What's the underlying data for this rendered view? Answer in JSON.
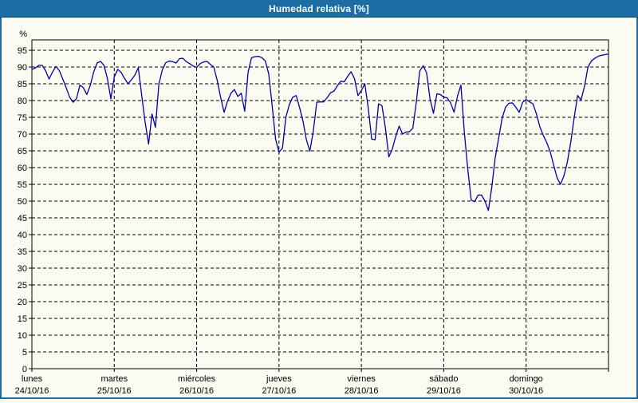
{
  "window": {
    "title": "Humedad relativa [%]"
  },
  "colors": {
    "titlebar_bg": "#1B6DA3",
    "titlebar_border": "#0F4C78",
    "titlebar_text": "#FFFFFF",
    "window_border": "#1B6DA3",
    "page_bg": "#FBFBF1",
    "plot_bg": "#FBFBF1",
    "axis": "#000000",
    "grid": "#000000",
    "line": "#0000AA",
    "label_text": "#000000"
  },
  "chart_data": {
    "type": "line",
    "title": "Humedad relativa [%]",
    "xlabel": "",
    "ylabel": "%",
    "ylim": [
      0,
      98
    ],
    "yticks": [
      0,
      5,
      10,
      15,
      20,
      25,
      30,
      35,
      40,
      45,
      50,
      55,
      60,
      65,
      70,
      75,
      80,
      85,
      90,
      95
    ],
    "grid": "dashed",
    "legend": "none",
    "x_axis": {
      "days": [
        {
          "name": "lunes",
          "date": "24/10/16"
        },
        {
          "name": "martes",
          "date": "25/10/16"
        },
        {
          "name": "miércoles",
          "date": "26/10/16"
        },
        {
          "name": "jueves",
          "date": "27/10/16"
        },
        {
          "name": "viernes",
          "date": "28/10/16"
        },
        {
          "name": "sábado",
          "date": "29/10/16"
        },
        {
          "name": "domingo",
          "date": "30/10/16"
        }
      ],
      "points_per_day": 24,
      "unit": "hours"
    },
    "series": [
      {
        "name": "Humedad relativa [%]",
        "color": "#0000AA",
        "values": [
          89.3,
          89.7,
          90.5,
          90.5,
          88.9,
          86.4,
          88.5,
          90.2,
          88.9,
          86.4,
          83.8,
          81.0,
          79.5,
          80.6,
          84.6,
          83.8,
          81.8,
          84.5,
          88.5,
          91.2,
          91.7,
          90.5,
          86.6,
          80.5,
          87.0,
          89.3,
          88.4,
          86.6,
          85.0,
          86.2,
          87.6,
          89.8,
          81.5,
          73.5,
          67.0,
          76.0,
          72.0,
          84.9,
          89.2,
          91.3,
          91.8,
          91.6,
          91.2,
          92.5,
          92.6,
          91.6,
          91.0,
          90.3,
          89.9,
          91.0,
          91.5,
          91.7,
          90.8,
          90.0,
          86.0,
          80.9,
          76.5,
          79.8,
          82.2,
          83.3,
          81.2,
          82.2,
          76.8,
          88.5,
          92.8,
          93.1,
          93.2,
          92.8,
          91.8,
          88.0,
          78.5,
          68.5,
          64.6,
          65.8,
          75.0,
          78.8,
          81.0,
          81.5,
          77.9,
          73.8,
          68.2,
          64.9,
          71.0,
          79.5,
          79.6,
          79.6,
          80.8,
          82.3,
          82.8,
          84.4,
          85.8,
          85.6,
          87.2,
          88.6,
          86.5,
          81.5,
          83.0,
          85.0,
          77.8,
          68.5,
          68.3,
          79.0,
          78.5,
          71.8,
          63.2,
          65.5,
          69.3,
          72.4,
          70.0,
          70.6,
          70.7,
          71.8,
          79.5,
          88.8,
          90.4,
          88.3,
          80.5,
          76.2,
          82.0,
          81.8,
          81.0,
          80.8,
          79.3,
          76.5,
          81.3,
          84.6,
          70.5,
          59.5,
          50.3,
          49.8,
          51.8,
          51.8,
          50.0,
          47.2,
          54.2,
          63.0,
          68.8,
          74.7,
          78.0,
          79.2,
          79.3,
          78.0,
          76.5,
          79.5,
          80.3,
          79.6,
          79.0,
          76.0,
          72.2,
          69.6,
          67.5,
          64.8,
          60.8,
          57.0,
          55.0,
          57.5,
          61.6,
          67.5,
          74.9,
          81.5,
          80.2,
          84.2,
          89.9,
          91.8,
          92.6,
          93.2,
          93.5,
          93.7,
          93.9
        ]
      }
    ]
  }
}
